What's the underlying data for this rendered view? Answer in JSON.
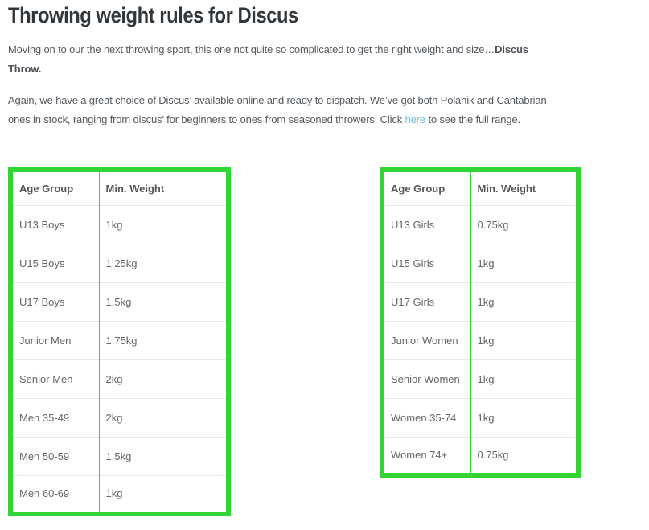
{
  "page_title": "Throwing weight rules for Discus",
  "intro": {
    "line1_normal": "Moving on to our the next throwing sport, this one not quite so complicated to get the right weight and size…",
    "line1_bold": "Discus",
    "line2_bold": "Throw."
  },
  "availability": {
    "line1": "Again, we have a great choice of Discus’ available online and ready to dispatch. We’ve got both Polanik and Cantabrian",
    "line2_before_link": "ones in stock, ranging from discus’ for beginners to ones from seasoned throwers. Click ",
    "link_text": "here",
    "line2_after_link": " to see the full range."
  },
  "tables": {
    "left": {
      "headers": [
        "Age Group",
        "Min. Weight"
      ],
      "rows": [
        [
          "U13 Boys",
          "1kg"
        ],
        [
          "U15 Boys",
          "1.25kg"
        ],
        [
          "U17 Boys",
          "1.5kg"
        ],
        [
          "Junior Men",
          "1.75kg"
        ],
        [
          "Senior Men",
          "2kg"
        ],
        [
          "Men 35-49",
          "2kg"
        ],
        [
          "Men 50-59",
          "1.5kg"
        ],
        [
          "Men 60-69",
          "1kg"
        ]
      ]
    },
    "right": {
      "headers": [
        "Age Group",
        "Min. Weight"
      ],
      "rows": [
        [
          "U13 Girls",
          "0.75kg"
        ],
        [
          "U15 Girls",
          "1kg"
        ],
        [
          "U17 Girls",
          "1kg"
        ],
        [
          "Junior Women",
          "1kg"
        ],
        [
          "Senior Women",
          "1kg"
        ],
        [
          "Women 35-74",
          "1kg"
        ],
        [
          "Women 74+",
          "0.75kg"
        ]
      ]
    }
  },
  "colors": {
    "table_border_green": "#35d435",
    "link_blue": "#6ec1e4",
    "heading_text": "#32373c",
    "body_text": "#54595f"
  }
}
